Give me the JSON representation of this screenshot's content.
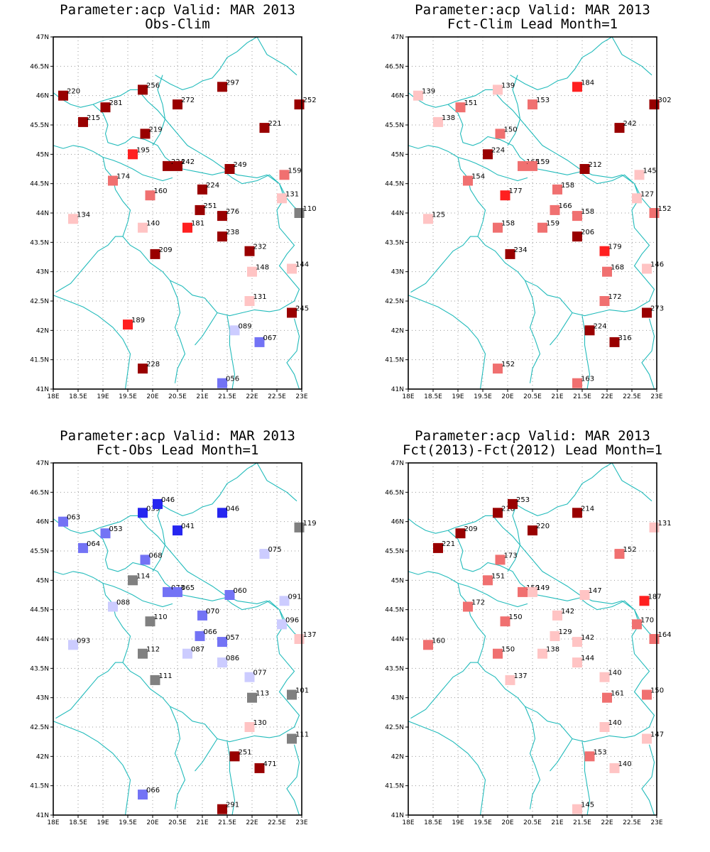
{
  "colors": {
    "dark_red": "#990000",
    "red": "#ff2020",
    "medium_red": "#f07070",
    "light_red": "#ffc4c4",
    "gray": "#808080",
    "light_blue": "#ccccff",
    "medium_blue": "#7373f5",
    "blue": "#2626f0",
    "coastline": "#22bbbb",
    "grid": "#999999"
  },
  "axes": {
    "lon_labels": [
      "18E",
      "18.5E",
      "19E",
      "19.5E",
      "20E",
      "20.5E",
      "21E",
      "21.5E",
      "22E",
      "22.5E",
      "23E"
    ],
    "lat_labels": [
      "47N",
      "46.5N",
      "46N",
      "45.5N",
      "45N",
      "44.5N",
      "44N",
      "43.5N",
      "43N",
      "42.5N",
      "42N",
      "41.5N",
      "41N"
    ],
    "lon_range": [
      18,
      23
    ],
    "lat_range": [
      41,
      47
    ]
  },
  "panels": [
    {
      "title_line1": "Parameter:acp Valid: MAR 2013",
      "title_line2": "Obs-Clim",
      "stations": [
        {
          "lon": 18.2,
          "lat": 46.0,
          "label": "220",
          "color": "dark_red"
        },
        {
          "lon": 19.05,
          "lat": 45.8,
          "label": "281",
          "color": "dark_red"
        },
        {
          "lon": 19.8,
          "lat": 46.1,
          "label": "256",
          "color": "dark_red"
        },
        {
          "lon": 20.5,
          "lat": 45.85,
          "label": "272",
          "color": "dark_red"
        },
        {
          "lon": 21.4,
          "lat": 46.15,
          "label": "297",
          "color": "dark_red"
        },
        {
          "lon": 22.95,
          "lat": 45.85,
          "label": "252",
          "color": "dark_red"
        },
        {
          "lon": 18.6,
          "lat": 45.55,
          "label": "215",
          "color": "dark_red"
        },
        {
          "lon": 19.85,
          "lat": 45.35,
          "label": "219",
          "color": "dark_red"
        },
        {
          "lon": 22.25,
          "lat": 45.45,
          "label": "221",
          "color": "dark_red"
        },
        {
          "lon": 19.6,
          "lat": 45.0,
          "label": "195",
          "color": "red"
        },
        {
          "lon": 20.3,
          "lat": 44.8,
          "label": "224",
          "color": "dark_red"
        },
        {
          "lon": 20.5,
          "lat": 44.8,
          "label": "242",
          "color": "dark_red"
        },
        {
          "lon": 21.55,
          "lat": 44.75,
          "label": "249",
          "color": "dark_red"
        },
        {
          "lon": 22.65,
          "lat": 44.65,
          "label": "159",
          "color": "medium_red"
        },
        {
          "lon": 19.2,
          "lat": 44.55,
          "label": "174",
          "color": "medium_red"
        },
        {
          "lon": 19.95,
          "lat": 44.3,
          "label": "160",
          "color": "medium_red"
        },
        {
          "lon": 21.0,
          "lat": 44.4,
          "label": "224",
          "color": "dark_red"
        },
        {
          "lon": 22.6,
          "lat": 44.25,
          "label": "131",
          "color": "light_red"
        },
        {
          "lon": 18.4,
          "lat": 43.9,
          "label": "134",
          "color": "light_red"
        },
        {
          "lon": 20.95,
          "lat": 44.05,
          "label": "251",
          "color": "dark_red"
        },
        {
          "lon": 21.4,
          "lat": 43.95,
          "label": "276",
          "color": "dark_red"
        },
        {
          "lon": 22.95,
          "lat": 44.0,
          "label": "110",
          "color": "gray"
        },
        {
          "lon": 19.8,
          "lat": 43.75,
          "label": "140",
          "color": "light_red"
        },
        {
          "lon": 20.7,
          "lat": 43.75,
          "label": "181",
          "color": "red"
        },
        {
          "lon": 21.4,
          "lat": 43.6,
          "label": "238",
          "color": "dark_red"
        },
        {
          "lon": 20.05,
          "lat": 43.3,
          "label": "209",
          "color": "dark_red"
        },
        {
          "lon": 21.95,
          "lat": 43.35,
          "label": "232",
          "color": "dark_red"
        },
        {
          "lon": 22.0,
          "lat": 43.0,
          "label": "148",
          "color": "light_red"
        },
        {
          "lon": 22.8,
          "lat": 43.05,
          "label": "144",
          "color": "light_red"
        },
        {
          "lon": 21.95,
          "lat": 42.5,
          "label": "131",
          "color": "light_red"
        },
        {
          "lon": 22.8,
          "lat": 42.3,
          "label": "245",
          "color": "dark_red"
        },
        {
          "lon": 19.5,
          "lat": 42.1,
          "label": "189",
          "color": "red"
        },
        {
          "lon": 21.65,
          "lat": 42.0,
          "label": "089",
          "color": "light_blue"
        },
        {
          "lon": 22.15,
          "lat": 41.8,
          "label": "067",
          "color": "medium_blue"
        },
        {
          "lon": 19.8,
          "lat": 41.35,
          "label": "228",
          "color": "dark_red"
        },
        {
          "lon": 21.4,
          "lat": 41.1,
          "label": "056",
          "color": "medium_blue"
        }
      ]
    },
    {
      "title_line1": "Parameter:acp Valid: MAR 2013",
      "title_line2": "Fct-Clim Lead Month=1",
      "stations": [
        {
          "lon": 18.2,
          "lat": 46.0,
          "label": "139",
          "color": "light_red"
        },
        {
          "lon": 19.05,
          "lat": 45.8,
          "label": "151",
          "color": "medium_red"
        },
        {
          "lon": 19.8,
          "lat": 46.1,
          "label": "139",
          "color": "light_red"
        },
        {
          "lon": 20.5,
          "lat": 45.85,
          "label": "153",
          "color": "medium_red"
        },
        {
          "lon": 21.4,
          "lat": 46.15,
          "label": "184",
          "color": "red"
        },
        {
          "lon": 22.95,
          "lat": 45.85,
          "label": "302",
          "color": "dark_red"
        },
        {
          "lon": 18.6,
          "lat": 45.55,
          "label": "138",
          "color": "light_red"
        },
        {
          "lon": 19.85,
          "lat": 45.35,
          "label": "150",
          "color": "medium_red"
        },
        {
          "lon": 22.25,
          "lat": 45.45,
          "label": "242",
          "color": "dark_red"
        },
        {
          "lon": 19.6,
          "lat": 45.0,
          "label": "224",
          "color": "dark_red"
        },
        {
          "lon": 20.3,
          "lat": 44.8,
          "label": "165",
          "color": "medium_red"
        },
        {
          "lon": 20.5,
          "lat": 44.8,
          "label": "159",
          "color": "medium_red"
        },
        {
          "lon": 21.55,
          "lat": 44.75,
          "label": "212",
          "color": "dark_red"
        },
        {
          "lon": 22.65,
          "lat": 44.65,
          "label": "145",
          "color": "light_red"
        },
        {
          "lon": 19.2,
          "lat": 44.55,
          "label": "154",
          "color": "medium_red"
        },
        {
          "lon": 19.95,
          "lat": 44.3,
          "label": "177",
          "color": "red"
        },
        {
          "lon": 21.0,
          "lat": 44.4,
          "label": "158",
          "color": "medium_red"
        },
        {
          "lon": 22.6,
          "lat": 44.25,
          "label": "127",
          "color": "light_red"
        },
        {
          "lon": 18.4,
          "lat": 43.9,
          "label": "125",
          "color": "light_red"
        },
        {
          "lon": 20.95,
          "lat": 44.05,
          "label": "166",
          "color": "medium_red"
        },
        {
          "lon": 21.4,
          "lat": 43.95,
          "label": "158",
          "color": "medium_red"
        },
        {
          "lon": 22.95,
          "lat": 44.0,
          "label": "152",
          "color": "medium_red"
        },
        {
          "lon": 19.8,
          "lat": 43.75,
          "label": "158",
          "color": "medium_red"
        },
        {
          "lon": 20.7,
          "lat": 43.75,
          "label": "159",
          "color": "medium_red"
        },
        {
          "lon": 21.4,
          "lat": 43.6,
          "label": "206",
          "color": "dark_red"
        },
        {
          "lon": 20.05,
          "lat": 43.3,
          "label": "234",
          "color": "dark_red"
        },
        {
          "lon": 21.95,
          "lat": 43.35,
          "label": "179",
          "color": "red"
        },
        {
          "lon": 22.0,
          "lat": 43.0,
          "label": "168",
          "color": "medium_red"
        },
        {
          "lon": 22.8,
          "lat": 43.05,
          "label": "146",
          "color": "light_red"
        },
        {
          "lon": 21.95,
          "lat": 42.5,
          "label": "172",
          "color": "medium_red"
        },
        {
          "lon": 22.8,
          "lat": 42.3,
          "label": "273",
          "color": "dark_red"
        },
        {
          "lon": 21.65,
          "lat": 42.0,
          "label": "224",
          "color": "dark_red"
        },
        {
          "lon": 22.15,
          "lat": 41.8,
          "label": "316",
          "color": "dark_red"
        },
        {
          "lon": 19.8,
          "lat": 41.35,
          "label": "152",
          "color": "medium_red"
        },
        {
          "lon": 21.4,
          "lat": 41.1,
          "label": "163",
          "color": "medium_red"
        }
      ]
    },
    {
      "title_line1": "Parameter:acp Valid: MAR 2013",
      "title_line2": "Fct-Obs Lead Month=1",
      "stations": [
        {
          "lon": 18.2,
          "lat": 46.0,
          "label": "063",
          "color": "medium_blue"
        },
        {
          "lon": 19.05,
          "lat": 45.8,
          "label": "053",
          "color": "medium_blue"
        },
        {
          "lon": 19.8,
          "lat": 46.15,
          "label": "039",
          "color": "blue"
        },
        {
          "lon": 20.1,
          "lat": 46.3,
          "label": "046",
          "color": "blue"
        },
        {
          "lon": 20.5,
          "lat": 45.85,
          "label": "041",
          "color": "blue"
        },
        {
          "lon": 21.4,
          "lat": 46.15,
          "label": "046",
          "color": "blue"
        },
        {
          "lon": 22.95,
          "lat": 45.9,
          "label": "119",
          "color": "gray"
        },
        {
          "lon": 18.6,
          "lat": 45.55,
          "label": "064",
          "color": "medium_blue"
        },
        {
          "lon": 19.85,
          "lat": 45.35,
          "label": "068",
          "color": "medium_blue"
        },
        {
          "lon": 22.25,
          "lat": 45.45,
          "label": "075",
          "color": "light_blue"
        },
        {
          "lon": 19.6,
          "lat": 45.0,
          "label": "114",
          "color": "gray"
        },
        {
          "lon": 20.3,
          "lat": 44.8,
          "label": "073",
          "color": "medium_blue"
        },
        {
          "lon": 20.5,
          "lat": 44.8,
          "label": "065",
          "color": "medium_blue"
        },
        {
          "lon": 21.55,
          "lat": 44.75,
          "label": "060",
          "color": "medium_blue"
        },
        {
          "lon": 22.65,
          "lat": 44.65,
          "label": "091",
          "color": "light_blue"
        },
        {
          "lon": 19.2,
          "lat": 44.55,
          "label": "088",
          "color": "light_blue"
        },
        {
          "lon": 19.95,
          "lat": 44.3,
          "label": "110",
          "color": "gray"
        },
        {
          "lon": 21.0,
          "lat": 44.4,
          "label": "070",
          "color": "medium_blue"
        },
        {
          "lon": 22.6,
          "lat": 44.25,
          "label": "096",
          "color": "light_blue"
        },
        {
          "lon": 18.4,
          "lat": 43.9,
          "label": "093",
          "color": "light_blue"
        },
        {
          "lon": 20.95,
          "lat": 44.05,
          "label": "066",
          "color": "medium_blue"
        },
        {
          "lon": 21.4,
          "lat": 43.95,
          "label": "057",
          "color": "medium_blue"
        },
        {
          "lon": 22.95,
          "lat": 44.0,
          "label": "137",
          "color": "light_red"
        },
        {
          "lon": 19.8,
          "lat": 43.75,
          "label": "112",
          "color": "gray"
        },
        {
          "lon": 20.7,
          "lat": 43.75,
          "label": "087",
          "color": "light_blue"
        },
        {
          "lon": 21.4,
          "lat": 43.6,
          "label": "086",
          "color": "light_blue"
        },
        {
          "lon": 20.05,
          "lat": 43.3,
          "label": "111",
          "color": "gray"
        },
        {
          "lon": 21.95,
          "lat": 43.35,
          "label": "077",
          "color": "light_blue"
        },
        {
          "lon": 22.0,
          "lat": 43.0,
          "label": "113",
          "color": "gray"
        },
        {
          "lon": 22.8,
          "lat": 43.05,
          "label": "101",
          "color": "gray"
        },
        {
          "lon": 21.95,
          "lat": 42.5,
          "label": "130",
          "color": "light_red"
        },
        {
          "lon": 22.8,
          "lat": 42.3,
          "label": "111",
          "color": "gray"
        },
        {
          "lon": 21.65,
          "lat": 42.0,
          "label": "251",
          "color": "dark_red"
        },
        {
          "lon": 22.15,
          "lat": 41.8,
          "label": "471",
          "color": "dark_red"
        },
        {
          "lon": 19.8,
          "lat": 41.35,
          "label": "066",
          "color": "medium_blue"
        },
        {
          "lon": 21.4,
          "lat": 41.1,
          "label": "291",
          "color": "dark_red"
        }
      ]
    },
    {
      "title_line1": "Parameter:acp Valid: MAR 2013",
      "title_line2": "Fct(2013)-Fct(2012) Lead Month=1",
      "stations": [
        {
          "lon": 19.8,
          "lat": 46.15,
          "label": "218",
          "color": "dark_red"
        },
        {
          "lon": 20.1,
          "lat": 46.3,
          "label": "253",
          "color": "dark_red"
        },
        {
          "lon": 21.4,
          "lat": 46.15,
          "label": "214",
          "color": "dark_red"
        },
        {
          "lon": 22.95,
          "lat": 45.9,
          "label": "131",
          "color": "light_red"
        },
        {
          "lon": 19.05,
          "lat": 45.8,
          "label": "209",
          "color": "dark_red"
        },
        {
          "lon": 20.5,
          "lat": 45.85,
          "label": "220",
          "color": "dark_red"
        },
        {
          "lon": 18.6,
          "lat": 45.55,
          "label": "221",
          "color": "dark_red"
        },
        {
          "lon": 19.85,
          "lat": 45.35,
          "label": "173",
          "color": "medium_red"
        },
        {
          "lon": 22.25,
          "lat": 45.45,
          "label": "152",
          "color": "medium_red"
        },
        {
          "lon": 19.6,
          "lat": 45.0,
          "label": "151",
          "color": "medium_red"
        },
        {
          "lon": 20.3,
          "lat": 44.8,
          "label": "159",
          "color": "medium_red"
        },
        {
          "lon": 20.5,
          "lat": 44.8,
          "label": "149",
          "color": "light_red"
        },
        {
          "lon": 21.55,
          "lat": 44.75,
          "label": "147",
          "color": "light_red"
        },
        {
          "lon": 22.75,
          "lat": 44.65,
          "label": "187",
          "color": "red"
        },
        {
          "lon": 19.2,
          "lat": 44.55,
          "label": "172",
          "color": "medium_red"
        },
        {
          "lon": 19.95,
          "lat": 44.3,
          "label": "150",
          "color": "medium_red"
        },
        {
          "lon": 21.0,
          "lat": 44.4,
          "label": "142",
          "color": "light_red"
        },
        {
          "lon": 22.6,
          "lat": 44.25,
          "label": "170",
          "color": "medium_red"
        },
        {
          "lon": 18.4,
          "lat": 43.9,
          "label": "160",
          "color": "medium_red"
        },
        {
          "lon": 20.95,
          "lat": 44.05,
          "label": "129",
          "color": "light_red"
        },
        {
          "lon": 21.4,
          "lat": 43.95,
          "label": "142",
          "color": "light_red"
        },
        {
          "lon": 22.95,
          "lat": 44.0,
          "label": "164",
          "color": "medium_red"
        },
        {
          "lon": 19.8,
          "lat": 43.75,
          "label": "150",
          "color": "medium_red"
        },
        {
          "lon": 20.7,
          "lat": 43.75,
          "label": "138",
          "color": "light_red"
        },
        {
          "lon": 21.4,
          "lat": 43.6,
          "label": "144",
          "color": "light_red"
        },
        {
          "lon": 20.05,
          "lat": 43.3,
          "label": "137",
          "color": "light_red"
        },
        {
          "lon": 21.95,
          "lat": 43.35,
          "label": "140",
          "color": "light_red"
        },
        {
          "lon": 22.0,
          "lat": 43.0,
          "label": "161",
          "color": "medium_red"
        },
        {
          "lon": 22.8,
          "lat": 43.05,
          "label": "150",
          "color": "medium_red"
        },
        {
          "lon": 21.95,
          "lat": 42.5,
          "label": "140",
          "color": "light_red"
        },
        {
          "lon": 22.8,
          "lat": 42.3,
          "label": "147",
          "color": "light_red"
        },
        {
          "lon": 21.65,
          "lat": 42.0,
          "label": "153",
          "color": "medium_red"
        },
        {
          "lon": 22.15,
          "lat": 41.8,
          "label": "140",
          "color": "light_red"
        },
        {
          "lon": 21.4,
          "lat": 41.1,
          "label": "145",
          "color": "light_red"
        }
      ]
    }
  ]
}
